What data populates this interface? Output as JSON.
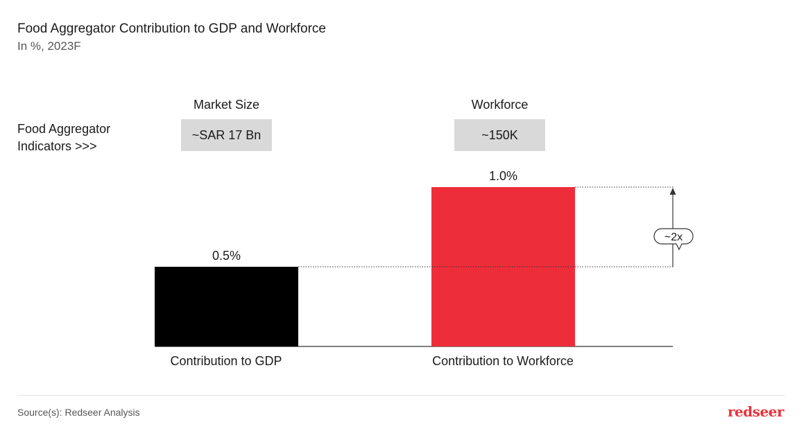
{
  "title": "Food Aggregator Contribution to GDP and Workforce",
  "subtitle": "In %, 2023F",
  "indicators": {
    "label_line1": "Food Aggregator",
    "label_line2": "Indicators >>>",
    "items": [
      {
        "heading": "Market Size",
        "value": "~SAR 17 Bn"
      },
      {
        "heading": "Workforce",
        "value": "~150K"
      }
    ]
  },
  "chart_data": {
    "type": "bar",
    "categories": [
      "Contribution to GDP",
      "Contribution to Workforce"
    ],
    "values": [
      0.5,
      1.0
    ],
    "data_labels": [
      "0.5%",
      "1.0%"
    ],
    "colors": [
      "#000000",
      "#ee2d3a"
    ],
    "ylim": [
      0,
      1.0
    ],
    "annotation": "~2x",
    "title": "Food Aggregator Contribution to GDP and Workforce",
    "subtitle": "In %, 2023F",
    "grid": false
  },
  "footer": {
    "source": "Source(s): Redseer Analysis",
    "logo": "redseer"
  }
}
